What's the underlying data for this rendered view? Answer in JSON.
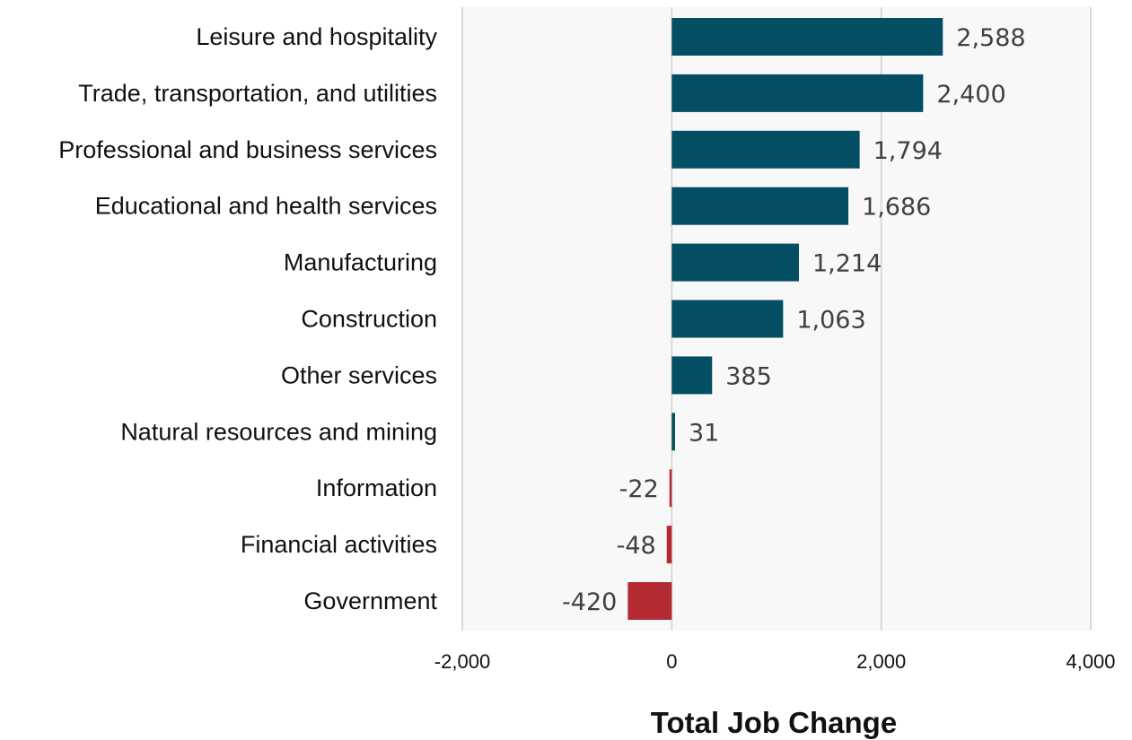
{
  "chart_data": {
    "type": "bar",
    "orientation": "horizontal",
    "title": "",
    "xlabel": "Total Job Change",
    "ylabel": "",
    "categories": [
      "Leisure and hospitality",
      "Trade, transportation, and utilities",
      "Professional and business services",
      "Educational and health services",
      "Manufacturing",
      "Construction",
      "Other services",
      "Natural resources and mining",
      "Information",
      "Financial activities",
      "Government"
    ],
    "values": [
      2588,
      2400,
      1794,
      1686,
      1214,
      1063,
      385,
      31,
      -22,
      -48,
      -420
    ],
    "value_labels": [
      "2,588",
      "2,400",
      "1,794",
      "1,686",
      "1,214",
      "1,063",
      "385",
      "31",
      "-22",
      "-48",
      "-420"
    ],
    "xlim": [
      -2000,
      4000
    ],
    "xticks": [
      -2000,
      0,
      2000,
      4000
    ],
    "xtick_labels": [
      "-2,000",
      "0",
      "2,000",
      "4,000"
    ],
    "grid": true,
    "legend": "none",
    "colors": {
      "positive": "#034e62",
      "negative": "#b32a33",
      "plot_background": "#f8f8f8",
      "gridline": "#d9d9d9"
    }
  }
}
